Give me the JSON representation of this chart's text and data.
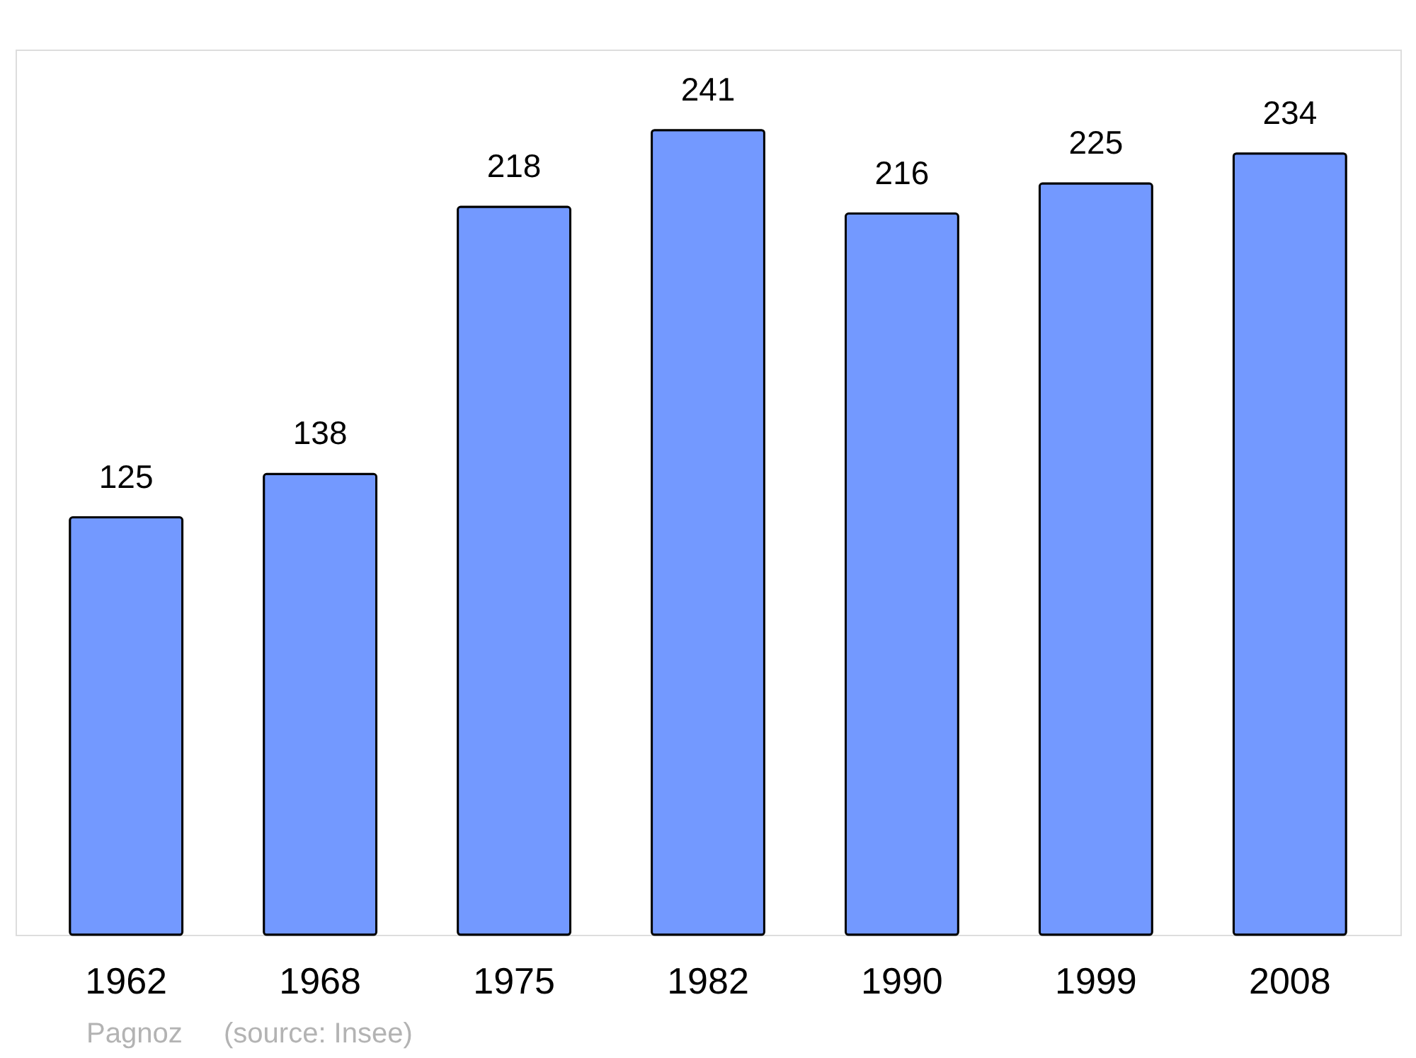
{
  "chart_data": {
    "type": "bar",
    "categories": [
      "1962",
      "1968",
      "1975",
      "1982",
      "1990",
      "1999",
      "2008"
    ],
    "values": [
      125,
      138,
      218,
      241,
      216,
      225,
      234
    ],
    "color": "#7399ff",
    "data_labels": true,
    "annotations": [
      "Pagnoz",
      "(source: Insee)"
    ]
  }
}
